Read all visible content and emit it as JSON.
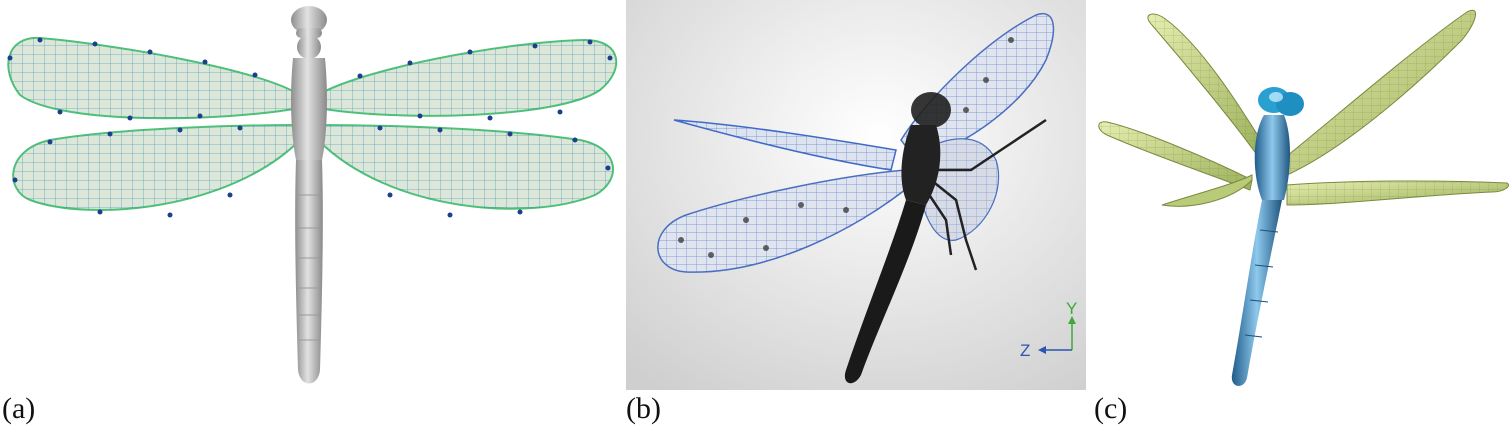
{
  "figure": {
    "panels": [
      {
        "id": "a",
        "caption": "(a)"
      },
      {
        "id": "b",
        "caption": "(b)"
      },
      {
        "id": "c",
        "caption": "(c)"
      }
    ],
    "axis": {
      "y_label": "Y",
      "z_label": "Z"
    },
    "colors": {
      "wing_fill_a": "#dde7d9",
      "wing_mesh_a": "#2d8ab0",
      "wing_outline_a": "#4fc07a",
      "control_point": "#1c3f8a",
      "body_gray": "#bdbdbd",
      "wing_mesh_b": "#4a6fc0",
      "body_b": "#222222",
      "background_b": "#e6e6e6",
      "wing_fill_c": "#c9d98c",
      "body_c": "#3f86b8",
      "axis_y": "#3aaa3a",
      "axis_z": "#2a55b0"
    }
  }
}
